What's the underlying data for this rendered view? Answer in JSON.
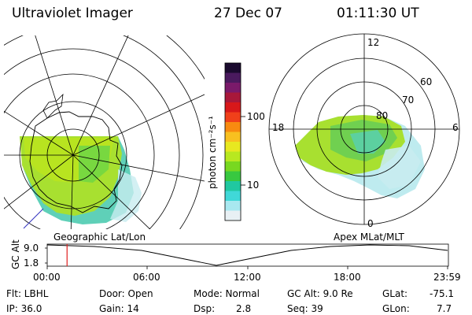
{
  "header": {
    "instrument": "Ultraviolet Imager",
    "date": "27 Dec 07",
    "time": "01:11:30 UT"
  },
  "colorbar": {
    "unit_label": "photon cm⁻²s⁻¹",
    "tick_100": "100",
    "tick_10": "10",
    "colors": [
      "#1a0a2e",
      "#4a1a5e",
      "#7a1a6a",
      "#a8183a",
      "#d8181a",
      "#f0401a",
      "#f88a10",
      "#f8c020",
      "#e8e820",
      "#b8e820",
      "#78d820",
      "#38c840",
      "#20c8a0",
      "#40d8d8",
      "#a8e8f0",
      "#e8f0f4"
    ]
  },
  "left_panel": {
    "label": "Geographic Lat/Lon"
  },
  "right_panel": {
    "label": "Apex MLat/MLT",
    "mlt_12": "12",
    "mlt_18": "18",
    "mlt_6": "6",
    "mlt_0": "0",
    "mlat_60": "60",
    "mlat_70": "70",
    "mlat_80": "80"
  },
  "altitude_plot": {
    "ylabel": "GC Alt",
    "ytick_high": "9.0",
    "ytick_low": "1.8",
    "xticks": [
      "00:00",
      "06:00",
      "12:00",
      "18:00",
      "23:59"
    ],
    "current_marker_hours": 1.19
  },
  "status": {
    "flt": "Flt: LBHL",
    "ip": "IP: 36.0",
    "door": "Door: Open",
    "gain": "Gain: 14",
    "mode": "Mode: Normal",
    "dsp_label": "Dsp:",
    "dsp_value": "2.8",
    "gcalt": "GC Alt: 9.0 Re",
    "seq": "Seq: 39",
    "glat_label": "GLat:",
    "glat_value": "-75.1",
    "glon_label": "GLon:",
    "glon_value": "7.7"
  }
}
